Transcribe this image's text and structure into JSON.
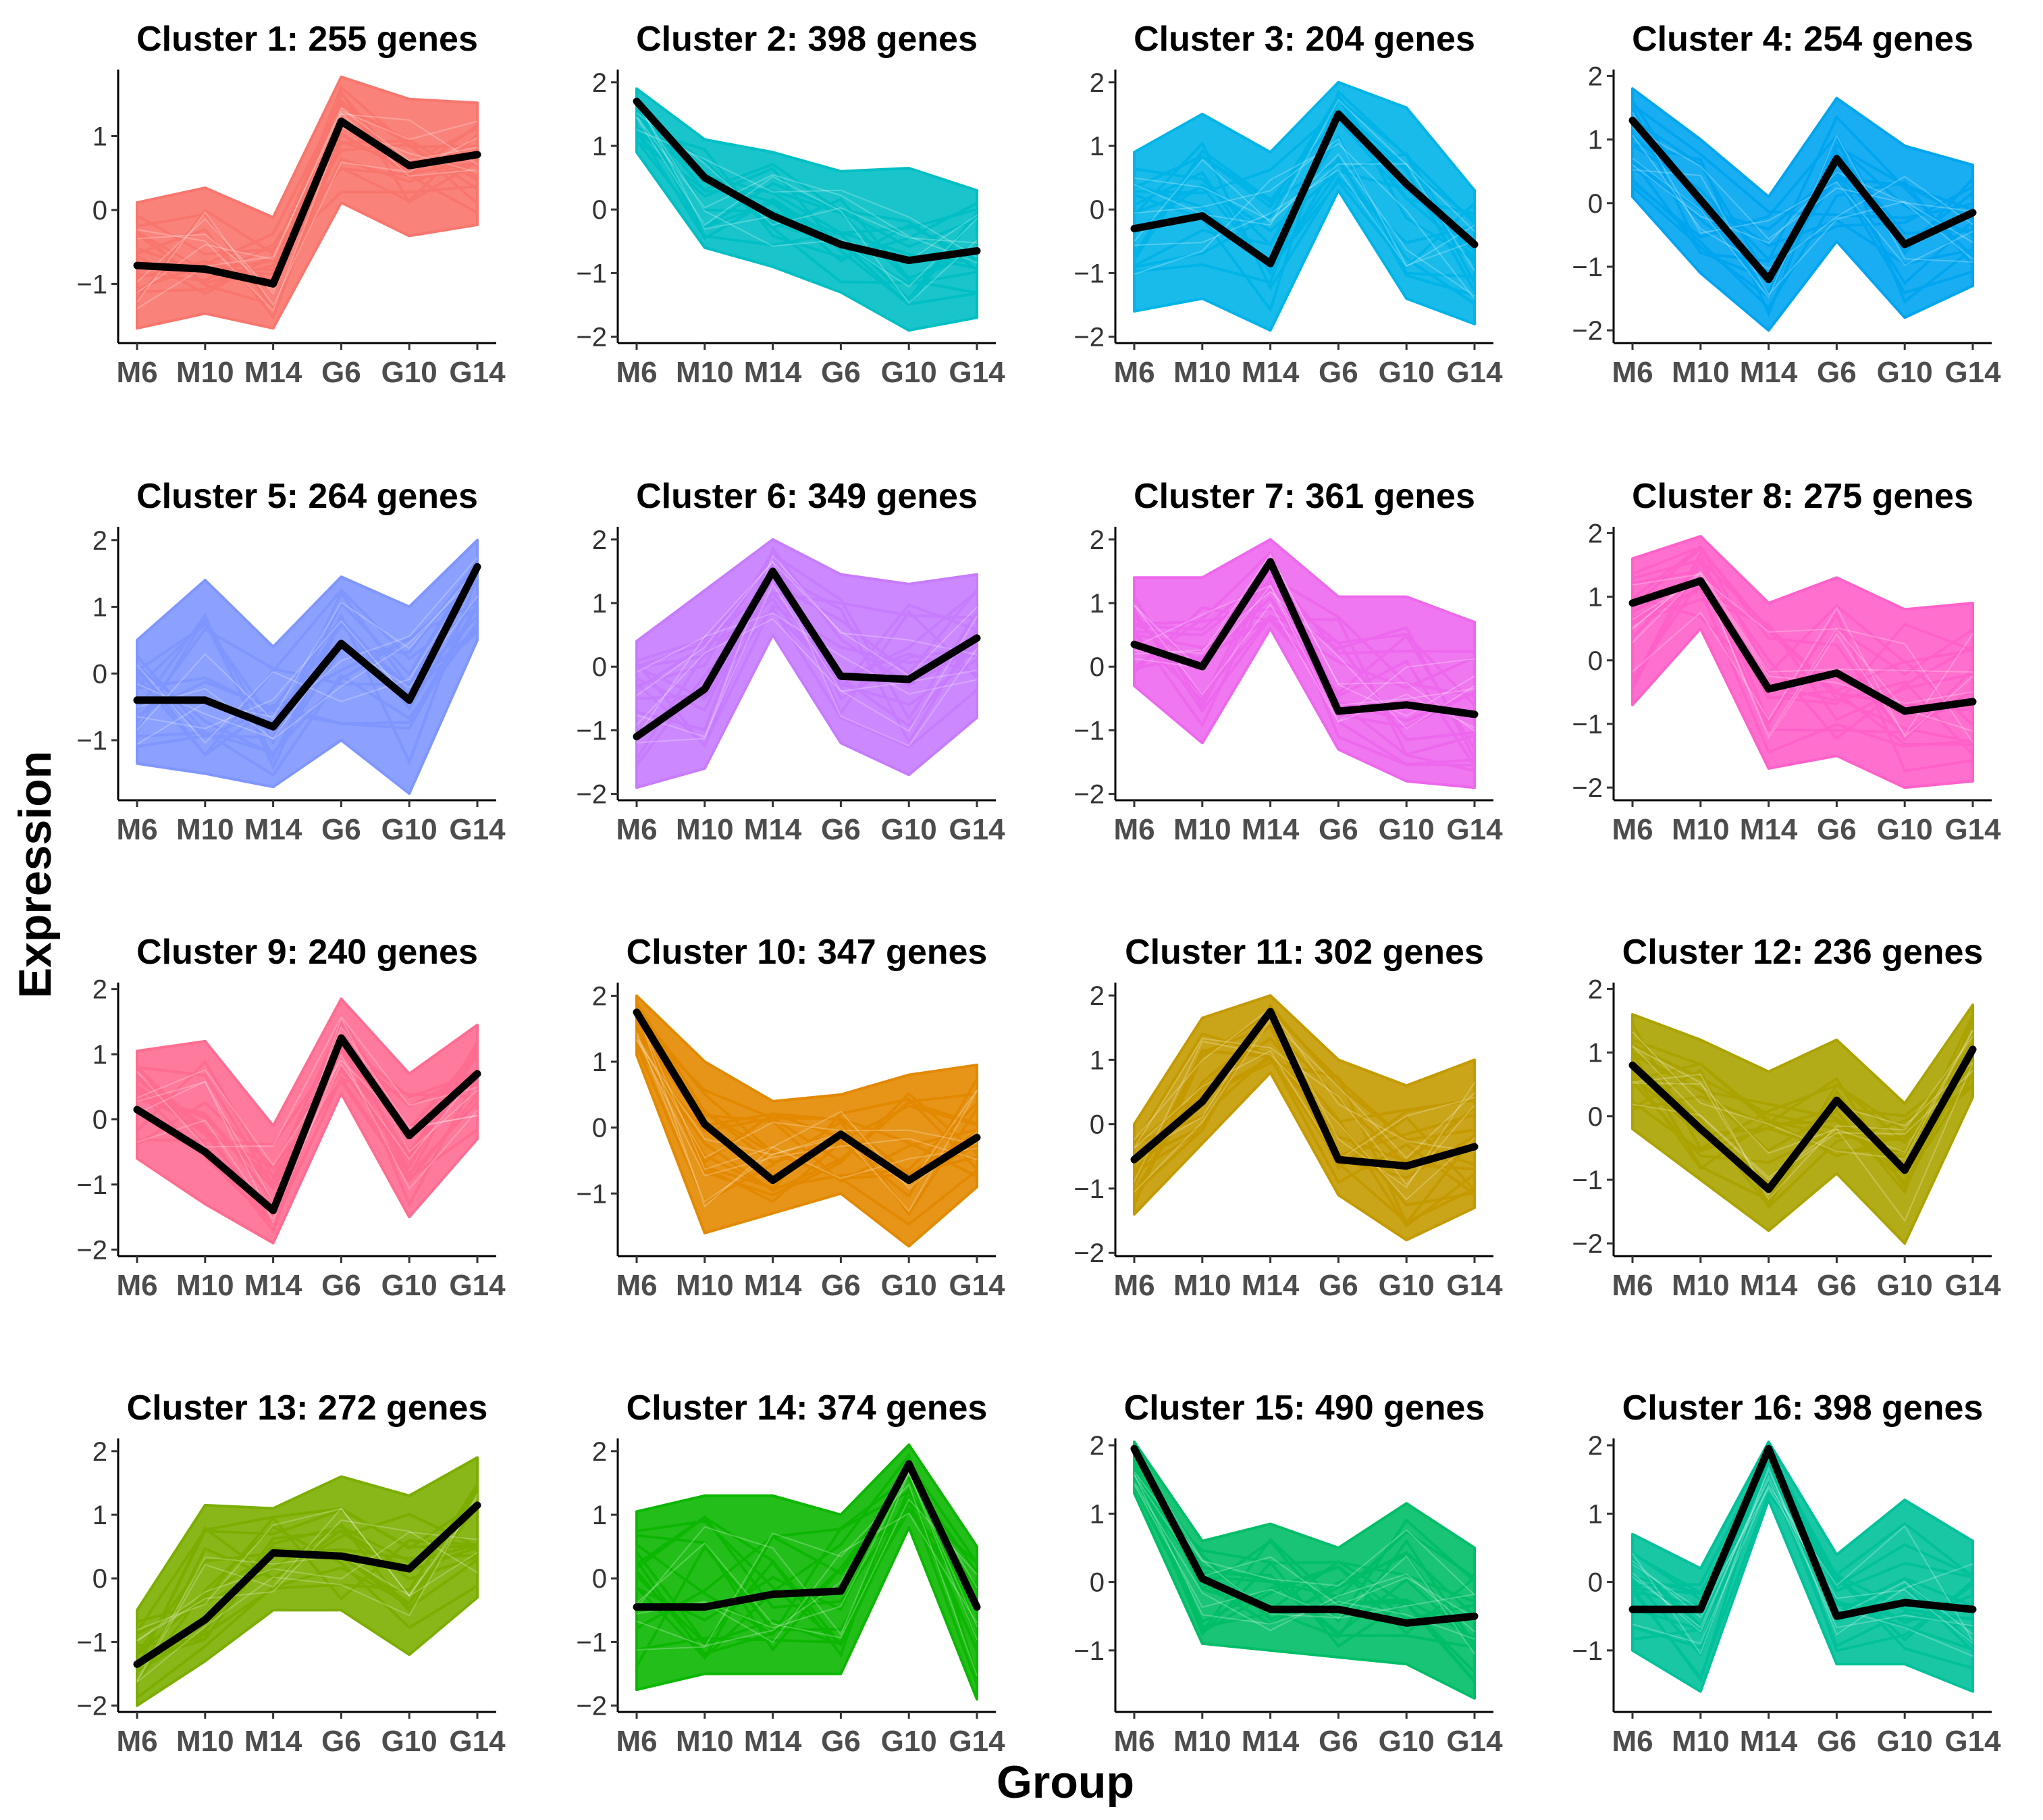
{
  "figure": {
    "xlabel": "Group",
    "ylabel": "Expression"
  },
  "chart_data": [
    {
      "type": "line",
      "title": "Cluster 1: 255 genes",
      "categories": [
        "M6",
        "M10",
        "M14",
        "G6",
        "G10",
        "G14"
      ],
      "ylim": [
        -1.8,
        1.9
      ],
      "yticks": [
        -1,
        0,
        1
      ],
      "mean": [
        -0.75,
        -0.8,
        -1.0,
        1.2,
        0.6,
        0.75
      ],
      "color": "#F8766D",
      "band_min": [
        -1.6,
        -1.4,
        -1.6,
        0.1,
        -0.35,
        -0.2
      ],
      "band_max": [
        0.1,
        0.3,
        -0.1,
        1.8,
        1.5,
        1.45
      ]
    },
    {
      "type": "line",
      "title": "Cluster 2: 398 genes",
      "categories": [
        "M6",
        "M10",
        "M14",
        "G6",
        "G10",
        "G14"
      ],
      "ylim": [
        -2.1,
        2.2
      ],
      "yticks": [
        -2,
        -1,
        0,
        1,
        2
      ],
      "mean": [
        1.7,
        0.5,
        -0.1,
        -0.55,
        -0.8,
        -0.65
      ],
      "color": "#00BFC4",
      "band_min": [
        0.9,
        -0.6,
        -0.9,
        -1.3,
        -1.9,
        -1.7
      ],
      "band_max": [
        1.9,
        1.1,
        0.9,
        0.6,
        0.65,
        0.3
      ]
    },
    {
      "type": "line",
      "title": "Cluster 3: 204 genes",
      "categories": [
        "M6",
        "M10",
        "M14",
        "G6",
        "G10",
        "G14"
      ],
      "ylim": [
        -2.1,
        2.2
      ],
      "yticks": [
        -2,
        -1,
        0,
        1,
        2
      ],
      "mean": [
        -0.3,
        -0.1,
        -0.85,
        1.5,
        0.4,
        -0.55
      ],
      "color": "#00B4E8",
      "band_min": [
        -1.6,
        -1.4,
        -1.9,
        0.3,
        -1.4,
        -1.8
      ],
      "band_max": [
        0.9,
        1.5,
        0.9,
        2.0,
        1.6,
        0.3
      ]
    },
    {
      "type": "line",
      "title": "Cluster 4: 254 genes",
      "categories": [
        "M6",
        "M10",
        "M14",
        "G6",
        "G10",
        "G14"
      ],
      "ylim": [
        -2.2,
        2.1
      ],
      "yticks": [
        -2,
        -1,
        0,
        1,
        2
      ],
      "mean": [
        1.3,
        0.05,
        -1.2,
        0.7,
        -0.65,
        -0.15
      ],
      "color": "#00A5EF",
      "band_min": [
        0.1,
        -1.1,
        -2.0,
        -0.6,
        -1.8,
        -1.3
      ],
      "band_max": [
        1.8,
        1.0,
        0.1,
        1.65,
        0.9,
        0.6
      ]
    },
    {
      "type": "line",
      "title": "Cluster 5: 264 genes",
      "categories": [
        "M6",
        "M10",
        "M14",
        "G6",
        "G10",
        "G14"
      ],
      "ylim": [
        -1.9,
        2.2
      ],
      "yticks": [
        -1,
        0,
        1,
        2
      ],
      "mean": [
        -0.4,
        -0.4,
        -0.8,
        0.45,
        -0.4,
        1.6
      ],
      "color": "#7F96FF",
      "band_min": [
        -1.35,
        -1.5,
        -1.7,
        -1.0,
        -1.8,
        0.5
      ],
      "band_max": [
        0.5,
        1.4,
        0.4,
        1.45,
        1.0,
        2.0
      ]
    },
    {
      "type": "line",
      "title": "Cluster 6: 349 genes",
      "categories": [
        "M6",
        "M10",
        "M14",
        "G6",
        "G10",
        "G14"
      ],
      "ylim": [
        -2.1,
        2.2
      ],
      "yticks": [
        -2,
        -1,
        0,
        1,
        2
      ],
      "mean": [
        -1.1,
        -0.35,
        1.5,
        -0.15,
        -0.2,
        0.45
      ],
      "color": "#C77CFF",
      "band_min": [
        -1.9,
        -1.6,
        0.5,
        -1.2,
        -1.7,
        -0.8
      ],
      "band_max": [
        0.4,
        1.2,
        2.0,
        1.45,
        1.3,
        1.45
      ]
    },
    {
      "type": "line",
      "title": "Cluster 7: 361 genes",
      "categories": [
        "M6",
        "M10",
        "M14",
        "G6",
        "G10",
        "G14"
      ],
      "ylim": [
        -2.1,
        2.2
      ],
      "yticks": [
        -2,
        -1,
        0,
        1,
        2
      ],
      "mean": [
        0.35,
        0.0,
        1.65,
        -0.7,
        -0.6,
        -0.75
      ],
      "color": "#ED68ED",
      "band_min": [
        -0.3,
        -1.2,
        0.6,
        -1.3,
        -1.8,
        -1.9
      ],
      "band_max": [
        1.4,
        1.4,
        2.0,
        1.1,
        1.1,
        0.7
      ]
    },
    {
      "type": "line",
      "title": "Cluster 8: 275 genes",
      "categories": [
        "M6",
        "M10",
        "M14",
        "G6",
        "G10",
        "G14"
      ],
      "ylim": [
        -2.2,
        2.1
      ],
      "yticks": [
        -2,
        -1,
        0,
        1,
        2
      ],
      "mean": [
        0.9,
        1.25,
        -0.45,
        -0.2,
        -0.8,
        -0.65
      ],
      "color": "#FF61C9",
      "band_min": [
        -0.7,
        0.5,
        -1.7,
        -1.5,
        -2.0,
        -1.9
      ],
      "band_max": [
        1.6,
        1.95,
        0.9,
        1.3,
        0.8,
        0.9
      ]
    },
    {
      "type": "line",
      "title": "Cluster 9: 240 genes",
      "categories": [
        "M6",
        "M10",
        "M14",
        "G6",
        "G10",
        "G14"
      ],
      "ylim": [
        -2.1,
        2.1
      ],
      "yticks": [
        -2,
        -1,
        0,
        1,
        2
      ],
      "mean": [
        0.15,
        -0.5,
        -1.4,
        1.25,
        -0.25,
        0.7
      ],
      "color": "#FF6C91",
      "band_min": [
        -0.6,
        -1.3,
        -1.9,
        0.4,
        -1.5,
        -0.3
      ],
      "band_max": [
        1.05,
        1.2,
        -0.1,
        1.85,
        0.7,
        1.45
      ]
    },
    {
      "type": "line",
      "title": "Cluster 10: 347 genes",
      "categories": [
        "M6",
        "M10",
        "M14",
        "G6",
        "G10",
        "G14"
      ],
      "ylim": [
        -1.95,
        2.2
      ],
      "yticks": [
        -1,
        0,
        1,
        2
      ],
      "mean": [
        1.75,
        0.05,
        -0.8,
        -0.1,
        -0.8,
        -0.15
      ],
      "color": "#E38900",
      "band_min": [
        1.1,
        -1.6,
        -1.3,
        -1.0,
        -1.8,
        -0.9
      ],
      "band_max": [
        2.0,
        1.0,
        0.4,
        0.5,
        0.8,
        0.95
      ]
    },
    {
      "type": "line",
      "title": "Cluster 11: 302 genes",
      "categories": [
        "M6",
        "M10",
        "M14",
        "G6",
        "G10",
        "G14"
      ],
      "ylim": [
        -2.05,
        2.2
      ],
      "yticks": [
        -2,
        -1,
        0,
        1,
        2
      ],
      "mean": [
        -0.55,
        0.35,
        1.75,
        -0.55,
        -0.65,
        -0.35
      ],
      "color": "#C49A00",
      "band_min": [
        -1.4,
        -0.3,
        0.8,
        -1.1,
        -1.8,
        -1.3
      ],
      "band_max": [
        0.0,
        1.65,
        2.0,
        1.0,
        0.6,
        1.0
      ]
    },
    {
      "type": "line",
      "title": "Cluster 12: 236 genes",
      "categories": [
        "M6",
        "M10",
        "M14",
        "G6",
        "G10",
        "G14"
      ],
      "ylim": [
        -2.2,
        2.1
      ],
      "yticks": [
        -2,
        -1,
        0,
        1,
        2
      ],
      "mean": [
        0.8,
        -0.2,
        -1.15,
        0.25,
        -0.85,
        1.05
      ],
      "color": "#ABA300",
      "band_min": [
        -0.2,
        -1.0,
        -1.8,
        -0.9,
        -2.0,
        0.3
      ],
      "band_max": [
        1.6,
        1.2,
        0.7,
        1.2,
        0.2,
        1.75
      ]
    },
    {
      "type": "line",
      "title": "Cluster 13: 272 genes",
      "categories": [
        "M6",
        "M10",
        "M14",
        "G6",
        "G10",
        "G14"
      ],
      "ylim": [
        -2.1,
        2.2
      ],
      "yticks": [
        -2,
        -1,
        0,
        1,
        2
      ],
      "mean": [
        -1.35,
        -0.65,
        0.4,
        0.35,
        0.15,
        1.15
      ],
      "color": "#7CAE00",
      "band_min": [
        -2.0,
        -1.3,
        -0.5,
        -0.5,
        -1.2,
        -0.3
      ],
      "band_max": [
        -0.5,
        1.15,
        1.1,
        1.6,
        1.3,
        1.9
      ]
    },
    {
      "type": "line",
      "title": "Cluster 14: 374 genes",
      "categories": [
        "M6",
        "M10",
        "M14",
        "G6",
        "G10",
        "G14"
      ],
      "ylim": [
        -2.1,
        2.2
      ],
      "yticks": [
        -2,
        -1,
        0,
        1,
        2
      ],
      "mean": [
        -0.45,
        -0.45,
        -0.25,
        -0.2,
        1.8,
        -0.45
      ],
      "color": "#0CB702",
      "band_min": [
        -1.75,
        -1.5,
        -1.5,
        -1.5,
        0.8,
        -1.9
      ],
      "band_max": [
        1.05,
        1.3,
        1.3,
        1.0,
        2.1,
        0.5
      ]
    },
    {
      "type": "line",
      "title": "Cluster 15: 490 genes",
      "categories": [
        "M6",
        "M10",
        "M14",
        "G6",
        "G10",
        "G14"
      ],
      "ylim": [
        -1.9,
        2.1
      ],
      "yticks": [
        -1,
        0,
        1,
        2
      ],
      "mean": [
        1.95,
        0.05,
        -0.4,
        -0.4,
        -0.6,
        -0.5
      ],
      "color": "#00BE67",
      "band_min": [
        1.3,
        -0.9,
        -1.0,
        -1.1,
        -1.2,
        -1.7
      ],
      "band_max": [
        2.05,
        0.6,
        0.85,
        0.5,
        1.15,
        0.5
      ]
    },
    {
      "type": "line",
      "title": "Cluster 16: 398 genes",
      "categories": [
        "M6",
        "M10",
        "M14",
        "G6",
        "G10",
        "G14"
      ],
      "ylim": [
        -1.9,
        2.1
      ],
      "yticks": [
        -1,
        0,
        1,
        2
      ],
      "mean": [
        -0.4,
        -0.4,
        1.95,
        -0.5,
        -0.3,
        -0.4
      ],
      "color": "#00C19A",
      "band_min": [
        -1.0,
        -1.6,
        1.2,
        -1.2,
        -1.2,
        -1.6
      ],
      "band_max": [
        0.7,
        0.2,
        2.05,
        0.4,
        1.2,
        0.6
      ]
    }
  ]
}
